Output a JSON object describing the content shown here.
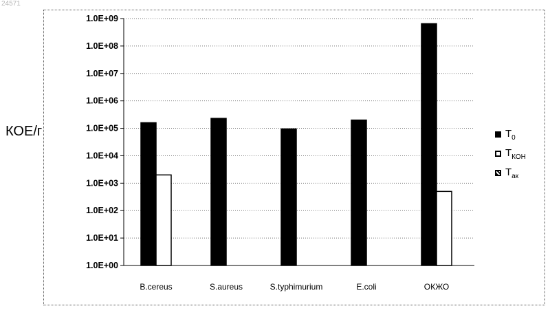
{
  "corner_id": "24571",
  "chart_data": {
    "type": "bar",
    "ylabel": "КОЕ/г",
    "yscale": "log",
    "ylim": [
      1,
      1000000000
    ],
    "yticks": [
      "1.0E+00",
      "1.0E+01",
      "1.0E+02",
      "1.0E+03",
      "1.0E+04",
      "1.0E+05",
      "1.0E+06",
      "1.0E+07",
      "1.0E+08",
      "1.0E+09"
    ],
    "categories": [
      "B.cereus",
      "S.aureus",
      "S.typhimurium",
      "E.coli",
      "ОКЖО"
    ],
    "grid": true,
    "legend_position": "right",
    "series": [
      {
        "name": "T",
        "sub": "0",
        "style": "solid",
        "color": "#000000",
        "values": [
          160000,
          230000,
          95000,
          200000,
          650000000
        ]
      },
      {
        "name": "T",
        "sub": "КОН",
        "style": "hollow",
        "color": "#ffffff",
        "values": [
          2000,
          null,
          null,
          null,
          500
        ]
      },
      {
        "name": "T",
        "sub": "ак",
        "style": "hatched",
        "color": "#000000",
        "values": [
          null,
          null,
          null,
          null,
          null
        ]
      }
    ]
  }
}
